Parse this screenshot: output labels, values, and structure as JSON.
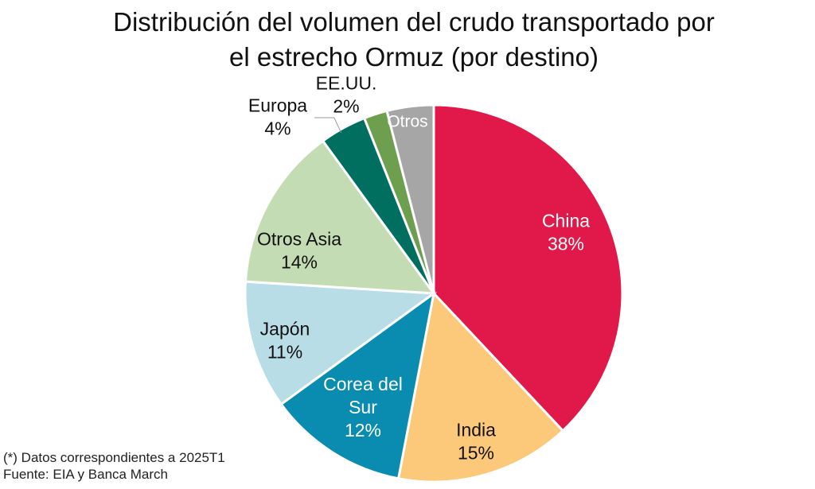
{
  "chart_data": {
    "type": "pie",
    "title": "Distribución del volumen del crudo transportado por el estrecho Ormuz (por destino)",
    "title_lines": [
      "Distribución del volumen del crudo transportado por",
      "el estrecho Ormuz (por destino)"
    ],
    "start": "12 o'clock",
    "direction": "clockwise",
    "unit": "%",
    "slices": [
      {
        "label": "China",
        "label_lines": [
          "China"
        ],
        "value": 38,
        "value_label": "38%",
        "color": "#e0194a",
        "text_color": "#ffffff"
      },
      {
        "label": "India",
        "label_lines": [
          "India"
        ],
        "value": 15,
        "value_label": "15%",
        "color": "#fcc97a",
        "text_color": "#111111"
      },
      {
        "label": "Corea del Sur",
        "label_lines": [
          "Corea del",
          "Sur"
        ],
        "value": 12,
        "value_label": "12%",
        "color": "#0a8cb0",
        "text_color": "#ffffff"
      },
      {
        "label": "Japón",
        "label_lines": [
          "Japón"
        ],
        "value": 11,
        "value_label": "11%",
        "color": "#b9dde7",
        "text_color": "#111111"
      },
      {
        "label": "Otros Asia",
        "label_lines": [
          "Otros Asia"
        ],
        "value": 14,
        "value_label": "14%",
        "color": "#c4dcb3",
        "text_color": "#111111"
      },
      {
        "label": "Europa",
        "label_lines": [
          "Europa"
        ],
        "value": 4,
        "value_label": "4%",
        "color": "#006f5f",
        "text_color": "#111111",
        "label_outside": true
      },
      {
        "label": "EE.UU.",
        "label_lines": [
          "EE.UU."
        ],
        "value": 2,
        "value_label": "2%",
        "color": "#6e9f4f",
        "text_color": "#111111",
        "label_outside": true
      },
      {
        "label": "Otros",
        "label_lines": [
          "Otros"
        ],
        "value": 4,
        "value_label": "",
        "color": "#a6a6a6",
        "text_color": "#ffffff"
      }
    ]
  },
  "footnotes": {
    "note": "(*) Datos correspondientes a 2025T1",
    "source": "Fuente: EIA y Banca March"
  }
}
